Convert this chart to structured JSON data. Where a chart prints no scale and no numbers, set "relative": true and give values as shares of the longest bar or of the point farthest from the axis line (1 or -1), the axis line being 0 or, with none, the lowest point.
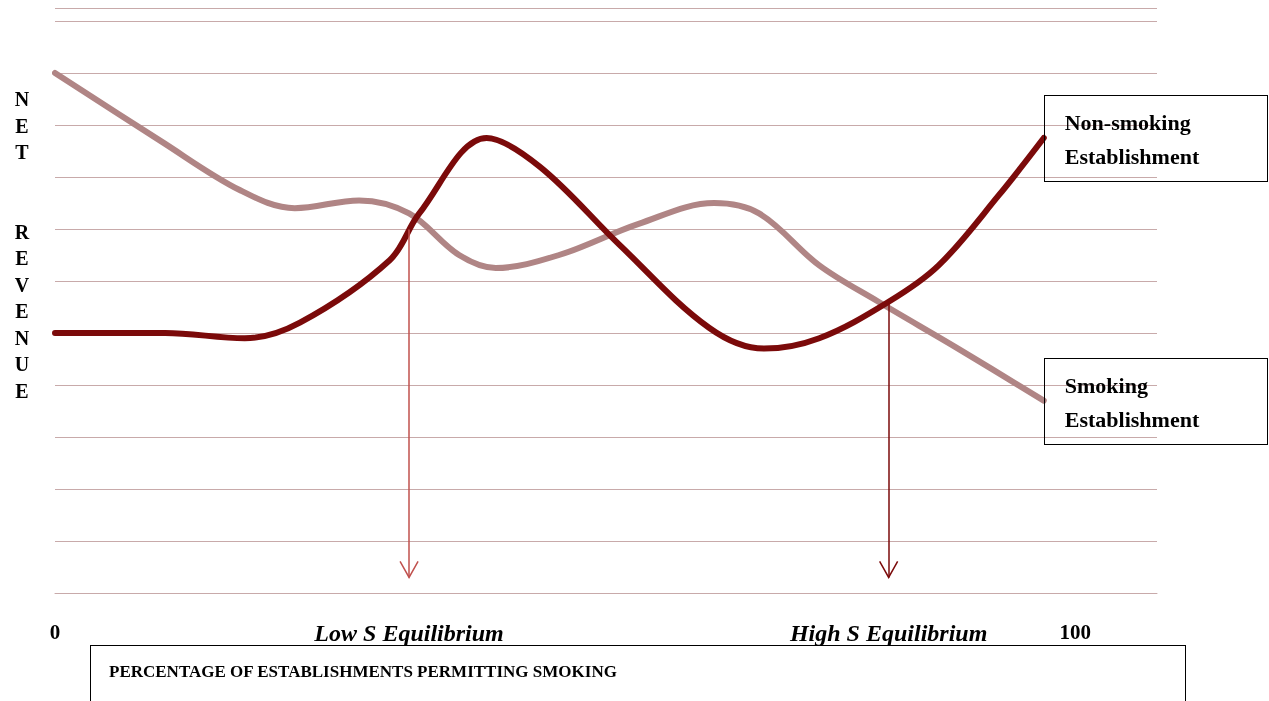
{
  "chart_data": {
    "type": "line",
    "relative": true,
    "xlabel": "PERCENTAGE OF ESTABLISHMENTS PERMITTING SMOKING",
    "ylabel": "NET REVENUE",
    "xlim": [
      0,
      108
    ],
    "xticks": [
      0,
      {
        "value": 34.7,
        "label": "Low S Equilibrium"
      },
      {
        "value": 81.7,
        "label": "High S Equilibrium"
      },
      100
    ],
    "grid": "y",
    "legend": false,
    "marker": "none",
    "line_style": "solid",
    "series": [
      {
        "name": "Non-smoking Establishment",
        "color": "#7b0a0a",
        "x": [
          0,
          10.8,
          18.6,
          24,
          32.8,
          35.7,
          42.3,
          47.5,
          55.3,
          64.1,
          69.5,
          74.9,
          81.7,
          86.6,
          92.5,
          96.9
        ],
        "values": [
          0.5,
          0.5,
          0.49,
          0.52,
          0.64,
          0.73,
          0.875,
          0.82,
          0.67,
          0.51,
          0.47,
          0.49,
          0.56,
          0.63,
          0.765,
          0.875
        ]
      },
      {
        "name": "Smoking Establishment",
        "color": "#b08585",
        "x": [
          0,
          10.3,
          18.1,
          23.5,
          29.8,
          34.7,
          39.6,
          43.2,
          49.4,
          57.2,
          64.6,
          69,
          74.9,
          80.7,
          88.5,
          96.9
        ],
        "values": [
          1.0,
          0.87,
          0.775,
          0.74,
          0.755,
          0.73,
          0.65,
          0.625,
          0.65,
          0.71,
          0.75,
          0.73,
          0.63,
          0.56,
          0.47,
          0.37
        ]
      }
    ],
    "ref_lines": [
      {
        "axis": "x",
        "value": 34.7,
        "color": "#c0504d"
      },
      {
        "axis": "x",
        "value": 81.7,
        "color": "#7b0a0a"
      }
    ]
  }
}
